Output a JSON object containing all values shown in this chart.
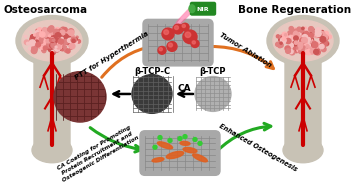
{
  "title_left": "Osteosarcoma",
  "title_right": "Bone Regeneration",
  "label_beta_tcp_c": "β-TCP-C",
  "label_beta_tcp": "β-TCP",
  "label_ca": "CA",
  "label_ptt": "PTT for Hyperthermia",
  "label_tumor": "Tumor Ablation",
  "label_ca_coating": "CA Coating for Promoting\nProtein Recruitment and\nOsteogenic Differentiation",
  "label_enhanced": "Enhanced Osteogenesis",
  "nir_label": "NIR",
  "orange": "#e07020",
  "green": "#22aa22",
  "black": "#111111",
  "bone_outer": "#c8c0b0",
  "bone_inner_bg": "#e8d8c8",
  "blood_red": "#cc0000",
  "tumor_dark": "#7a3535",
  "scaffold_gray": "#aaaaaa",
  "btcp_c_dark": "#404040",
  "btcp_light": "#b8b8b8",
  "pink_spot": "#e89090",
  "pink_light": "#f8c0c0"
}
